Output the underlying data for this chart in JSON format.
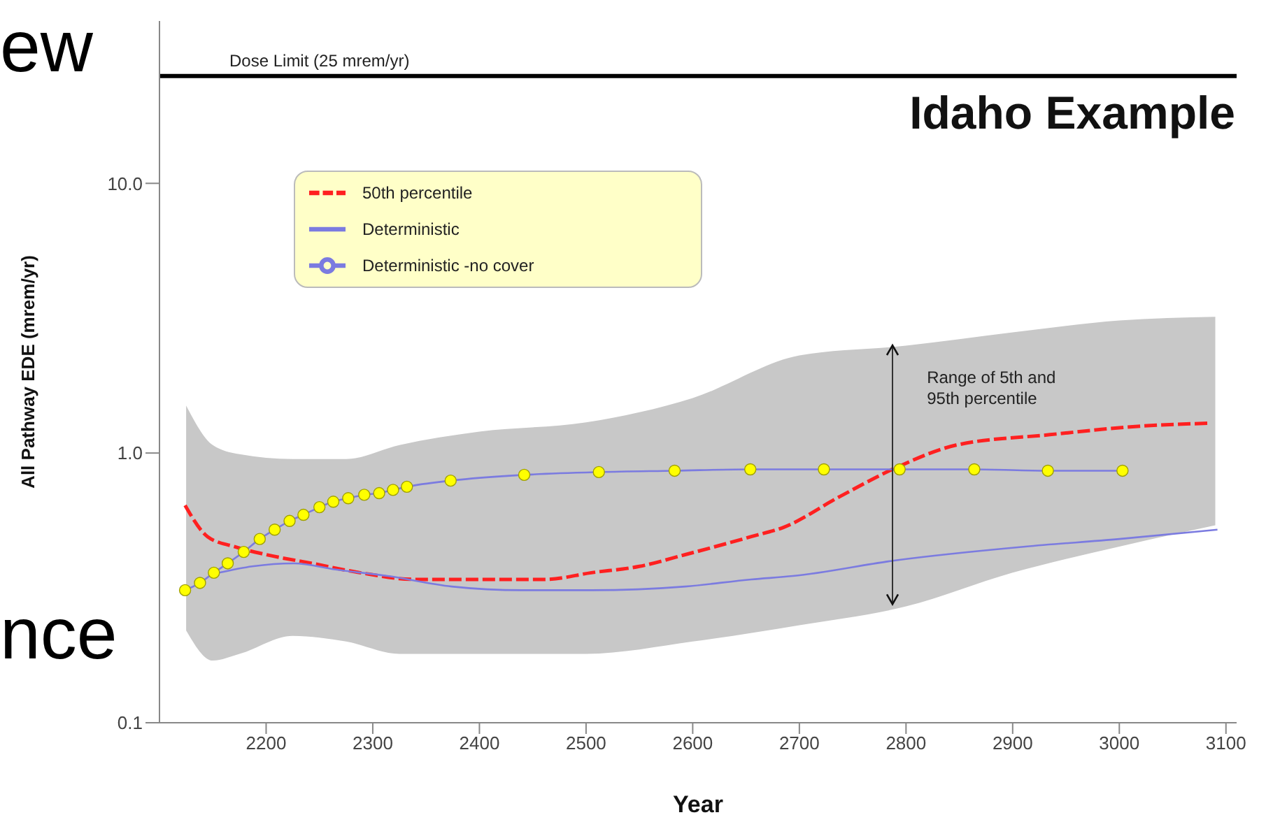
{
  "chart_data": {
    "type": "line",
    "title": "Idaho Example",
    "xlabel": "Year",
    "ylabel": "All Pathway EDE (mrem/yr)",
    "log": "y",
    "xlim": [
      2100,
      3110
    ],
    "ylim": [
      0.1,
      40
    ],
    "xticks": [
      2200,
      2300,
      2400,
      2500,
      2600,
      2700,
      2800,
      2900,
      3000,
      3100
    ],
    "yticks": [
      0.1,
      {
        "value": 1,
        "label": "1.0"
      },
      {
        "value": 10,
        "label": "10.0"
      }
    ],
    "grid": false,
    "legend": "top left",
    "series": [
      {
        "type": "area",
        "color": "#c8c8c8",
        "values": [
          null,
          null,
          null,
          null,
          null,
          null,
          null,
          null,
          null,
          null,
          null,
          null,
          null,
          null
        ],
        "x": [
          2125,
          2150,
          2175,
          2225,
          2275,
          2325,
          2400,
          2500,
          2600,
          2700,
          2800,
          2900,
          3000,
          3090
        ],
        "lower": [
          0.22,
          0.17,
          0.18,
          0.21,
          0.2,
          0.18,
          0.18,
          0.18,
          0.2,
          0.23,
          0.27,
          0.36,
          0.45,
          0.54
        ],
        "upper": [
          1.5,
          1.07,
          0.99,
          0.95,
          0.95,
          1.07,
          1.2,
          1.3,
          1.6,
          2.3,
          2.5,
          2.8,
          3.1,
          3.2
        ]
      },
      {
        "name": "50th percentile",
        "color": "#ff2020",
        "line_style": "dashed",
        "marker": "none",
        "x": [
          2124,
          2145,
          2170,
          2200,
          2243,
          2288,
          2340,
          2397,
          2462,
          2505,
          2550,
          2593,
          2655,
          2685,
          2738,
          2790,
          2847,
          2935,
          3022,
          3085
        ],
        "values": [
          0.64,
          0.49,
          0.45,
          0.42,
          0.39,
          0.36,
          0.34,
          0.34,
          0.34,
          0.36,
          0.38,
          0.42,
          0.49,
          0.53,
          0.69,
          0.88,
          1.07,
          1.17,
          1.26,
          1.29
        ]
      },
      {
        "name": "Deterministic",
        "color": "#7b7be0",
        "line_style": "solid",
        "marker": "none",
        "x": [
          2156,
          2187,
          2226,
          2265,
          2314,
          2374,
          2440,
          2505,
          2593,
          2655,
          2694,
          2790,
          2912,
          3000,
          3092
        ],
        "values": [
          0.36,
          0.38,
          0.39,
          0.37,
          0.35,
          0.32,
          0.31,
          0.31,
          0.32,
          0.34,
          0.35,
          0.4,
          0.45,
          0.48,
          0.52
        ]
      },
      {
        "name": "Deterministic -no cover",
        "color": "#7b7be0",
        "line_style": "solid",
        "marker": "circle",
        "colors": [
          "#ffff00",
          "#ffff00",
          "#ffff00",
          "#ffff00",
          "#ffff00",
          "#ffff00",
          "#ffff00",
          "#ffff00",
          "#ffff00",
          "#ffff00",
          "#ffff00",
          "#ffff00",
          "#ffff00",
          "#ffff00",
          "#ffff00",
          "#ffff00",
          "#ffff00",
          "#ffff00",
          "#ffff00",
          "#ffff00",
          "#ffff00",
          "#ffff00",
          "#ffff00",
          "#ffff00",
          "#ffff00",
          "#ffff00"
        ],
        "x": [
          2124,
          2138,
          2151,
          2164,
          2179,
          2194,
          2208,
          2222,
          2235,
          2250,
          2263,
          2277,
          2292,
          2306,
          2319,
          2332,
          2373,
          2442,
          2512,
          2583,
          2654,
          2723,
          2794,
          2864,
          2933,
          3003
        ],
        "values": [
          0.31,
          0.33,
          0.36,
          0.39,
          0.43,
          0.48,
          0.52,
          0.56,
          0.59,
          0.63,
          0.66,
          0.68,
          0.7,
          0.71,
          0.73,
          0.75,
          0.79,
          0.83,
          0.85,
          0.86,
          0.87,
          0.87,
          0.87,
          0.87,
          0.86,
          0.86
        ]
      }
    ],
    "ref_lines": [
      {
        "axis": "y",
        "value": 25,
        "label": "Dose Limit (25 mrem/yr)",
        "color": "#000000"
      }
    ],
    "annotations": [
      "Range of 5th and 95th percentile",
      "ew",
      "nce"
    ]
  }
}
